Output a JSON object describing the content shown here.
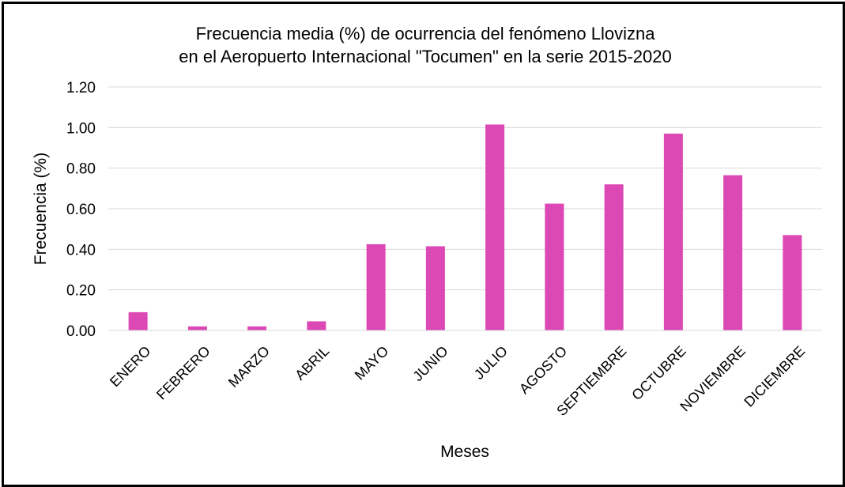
{
  "chart_data": {
    "type": "bar",
    "title_lines": [
      "Frecuencia media (%) de ocurrencia del fenómeno  Llovizna",
      "en el Aeropuerto Internacional \"Tocumen\"  en la serie 2015-2020"
    ],
    "xlabel": "Meses",
    "ylabel": "Frecuencia  (%)",
    "categories": [
      "ENERO",
      "FEBRERO",
      "MARZO",
      "ABRIL",
      "MAYO",
      "JUNIO",
      "JULIO",
      "AGOSTO",
      "SEPTIEMBRE",
      "OCTUBRE",
      "NOVIEMBRE",
      "DICIEMBRE"
    ],
    "values": [
      0.09,
      0.02,
      0.02,
      0.045,
      0.425,
      0.415,
      1.015,
      0.625,
      0.72,
      0.97,
      0.765,
      0.47
    ],
    "ylim": [
      0,
      1.2
    ],
    "yticks": [
      "0.00",
      "0.20",
      "0.40",
      "0.60",
      "0.80",
      "1.00",
      "1.20"
    ],
    "grid": true,
    "legend": "none",
    "bar_color": "#dc48b4"
  }
}
